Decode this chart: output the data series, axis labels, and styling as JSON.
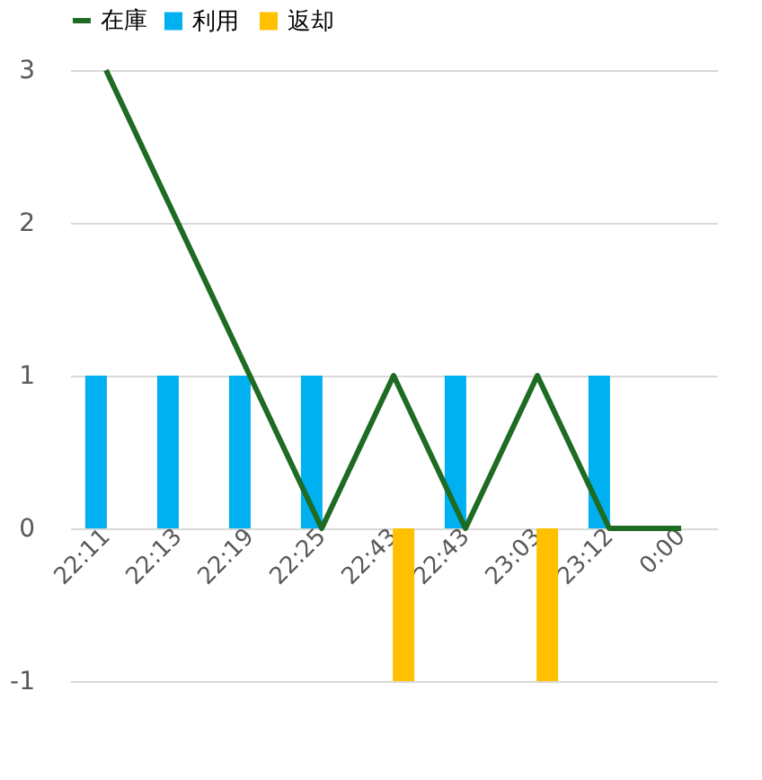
{
  "chart_data": {
    "type": "bar",
    "categories": [
      "22:11",
      "22:13",
      "22:19",
      "22:25",
      "22:43",
      "22:43",
      "23:03",
      "23:12",
      "0:00"
    ],
    "series": [
      {
        "name": "利用",
        "color": "#00b0f0",
        "values": [
          1,
          1,
          1,
          1,
          null,
          1,
          null,
          1,
          null
        ]
      },
      {
        "name": "返却",
        "color": "#ffc000",
        "values": [
          null,
          null,
          null,
          null,
          -1,
          null,
          -1,
          null,
          null
        ]
      },
      {
        "name": "在庫",
        "type": "line",
        "color": "#1e6b24",
        "values": [
          3,
          2,
          1,
          0,
          1,
          0,
          1,
          0,
          0
        ]
      }
    ],
    "ylim": [
      -1,
      3
    ],
    "yticks": [
      -1,
      0,
      1,
      2,
      3
    ],
    "grid": "y",
    "legend": "top"
  }
}
